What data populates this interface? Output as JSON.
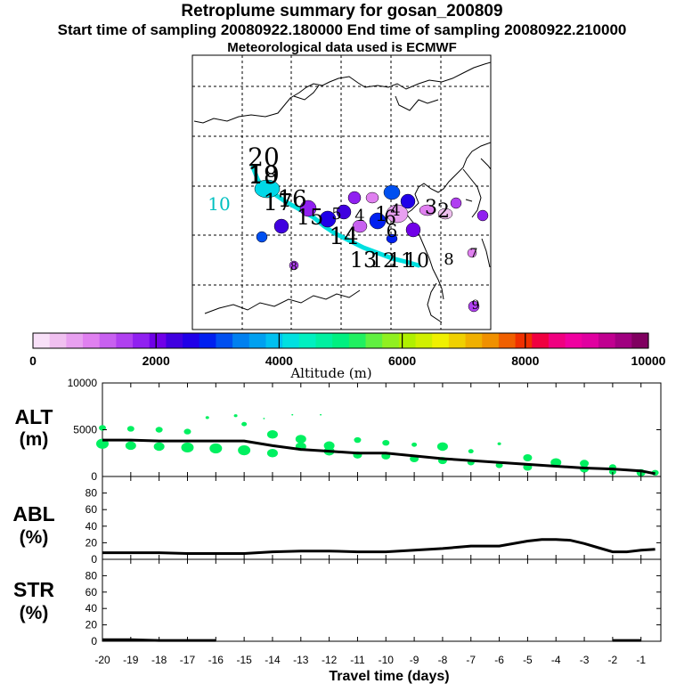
{
  "header": {
    "title": "Retroplume summary for gosan_200809",
    "sampling_line": "Start time of sampling 20080922.180000     End time of sampling 20080922.210000",
    "met_line": "Meteorological data used is ECMWF"
  },
  "map": {
    "trajectory_color": "#00e0e0",
    "day_labels": [
      {
        "label": "20",
        "color": "#000000"
      },
      {
        "label": "19",
        "color": "#000000"
      },
      {
        "label": "18",
        "color": "#000000"
      },
      {
        "label": "17",
        "color": "#000000"
      },
      {
        "label": "16",
        "color": "#000000"
      },
      {
        "label": "15",
        "color": "#000000"
      },
      {
        "label": "14",
        "color": "#000000"
      },
      {
        "label": "13",
        "color": "#000000"
      },
      {
        "label": "12",
        "color": "#000000"
      },
      {
        "label": "11",
        "color": "#000000"
      },
      {
        "label": "10",
        "color": "#000000"
      },
      {
        "label": "10",
        "color": "#00c0c0"
      },
      {
        "label": "8",
        "color": "#000000"
      },
      {
        "label": "9",
        "color": "#000000"
      },
      {
        "label": "7",
        "color": "#000000"
      },
      {
        "label": "6",
        "color": "#000000"
      },
      {
        "label": "5",
        "color": "#000000"
      },
      {
        "label": "4",
        "color": "#000000"
      },
      {
        "label": "3",
        "color": "#000000"
      },
      {
        "label": "2",
        "color": "#000000"
      },
      {
        "label": "1",
        "color": "#000000"
      },
      {
        "label": "4",
        "color": "#000000"
      },
      {
        "label": "6",
        "color": "#000000"
      },
      {
        "label": "8",
        "color": "#000000"
      }
    ]
  },
  "colorbar": {
    "colors": [
      "#f8e0f8",
      "#f0c0f0",
      "#e8a0f0",
      "#e080f0",
      "#c860f0",
      "#b040f0",
      "#9020f0",
      "#7000e8",
      "#4000e0",
      "#2000e8",
      "#0020f0",
      "#0050f0",
      "#0080f0",
      "#00a0f0",
      "#00c0f0",
      "#00e0e0",
      "#00f0c0",
      "#00f0a0",
      "#00f080",
      "#20f060",
      "#60f040",
      "#90f020",
      "#b0f000",
      "#d0f000",
      "#f0f000",
      "#f0d000",
      "#f0b000",
      "#f09000",
      "#f06000",
      "#f03000",
      "#f00040",
      "#f00080",
      "#f000a0",
      "#e000a0",
      "#c00090",
      "#a00080",
      "#800060"
    ],
    "ticks": [
      "0",
      "2000",
      "4000",
      "6000",
      "8000",
      "10000"
    ],
    "label": "Altitude (m)"
  },
  "chart_data": [
    {
      "type": "scatter",
      "panel": "ALT",
      "title": "",
      "ylabel": "ALT (m)",
      "ylabel_line1": "ALT",
      "ylabel_line2": "(m)",
      "xlim": [
        -20,
        -0.3
      ],
      "ylim": [
        0,
        10000
      ],
      "yticks": [
        "10000",
        "5000",
        "0"
      ],
      "series": [
        {
          "name": "mean altitude",
          "x": [
            -20,
            -19,
            -18,
            -17,
            -16,
            -15,
            -14,
            -13,
            -12,
            -11,
            -10,
            -9,
            -8,
            -7,
            -6,
            -5,
            -4,
            -3,
            -2,
            -1,
            -0.5
          ],
          "y": [
            3900,
            3900,
            3800,
            3800,
            3800,
            3800,
            3300,
            2900,
            2700,
            2500,
            2500,
            2200,
            1900,
            1700,
            1500,
            1300,
            1100,
            900,
            800,
            600,
            300
          ]
        },
        {
          "name": "particle clusters",
          "color": "#00f060",
          "x": [
            -20,
            -20,
            -19,
            -19,
            -18,
            -18,
            -17,
            -17,
            -16,
            -15,
            -15,
            -14,
            -14,
            -13,
            -13,
            -12,
            -12,
            -11,
            -11,
            -10,
            -10,
            -9,
            -9,
            -8,
            -8,
            -7,
            -7,
            -6,
            -6,
            -5,
            -5,
            -4,
            -3,
            -3,
            -2,
            -2,
            -1,
            -0.5,
            -16.3,
            -15.3,
            -14.3,
            -13.3,
            -12.3
          ],
          "y": [
            5200,
            3500,
            5100,
            3300,
            5000,
            3200,
            4800,
            3100,
            3000,
            2800,
            5600,
            2500,
            4500,
            3200,
            4000,
            2700,
            3300,
            2300,
            3900,
            2200,
            3600,
            1900,
            3400,
            1700,
            3200,
            1500,
            2700,
            1200,
            3500,
            1000,
            2000,
            1500,
            800,
            1400,
            500,
            1000,
            400,
            400,
            6300,
            6500,
            6200,
            6600,
            6600
          ],
          "r": [
            4,
            7,
            4,
            6,
            4,
            6,
            4,
            7,
            7,
            7,
            3,
            6,
            6,
            6,
            6,
            6,
            6,
            5,
            4,
            5,
            4,
            5,
            3,
            5,
            6,
            4,
            3,
            4,
            2,
            5,
            5,
            6,
            5,
            5,
            4,
            4,
            5,
            4,
            2,
            2,
            1,
            1,
            1
          ]
        }
      ]
    },
    {
      "type": "line",
      "panel": "ABL",
      "title": "",
      "ylabel": "ABL (%)",
      "ylabel_line1": "ABL",
      "ylabel_line2": "(%)",
      "xlim": [
        -20,
        -0.3
      ],
      "ylim": [
        0,
        100
      ],
      "yticks": [
        "80",
        "60",
        "40",
        "20",
        "0"
      ],
      "series": [
        {
          "name": "ABL fraction",
          "x": [
            -20,
            -19,
            -18,
            -17,
            -16,
            -15,
            -14,
            -13,
            -12,
            -11,
            -10,
            -9,
            -8,
            -7,
            -6,
            -5,
            -4.5,
            -4,
            -3.5,
            -3,
            -2.5,
            -2,
            -1.5,
            -1,
            -0.5
          ],
          "y": [
            8,
            8,
            8,
            7,
            7,
            7,
            9,
            10,
            10,
            9,
            9,
            11,
            13,
            16,
            16,
            22,
            24,
            24,
            23,
            19,
            14,
            9,
            9,
            11,
            12
          ]
        }
      ]
    },
    {
      "type": "line",
      "panel": "STR",
      "title": "",
      "xlabel": "Travel time (days)",
      "ylabel": "STR (%)",
      "ylabel_line1": "STR",
      "ylabel_line2": "(%)",
      "xlim": [
        -20,
        -0.3
      ],
      "ylim": [
        0,
        100
      ],
      "yticks": [
        "80",
        "60",
        "40",
        "20",
        "0"
      ],
      "xticks": [
        "-20",
        "-19",
        "-18",
        "-17",
        "-16",
        "-15",
        "-14",
        "-13",
        "-12",
        "-11",
        "-10",
        "-9",
        "-8",
        "-7",
        "-6",
        "-5",
        "-4",
        "-3",
        "-2",
        "-1"
      ],
      "series": [
        {
          "name": "STR fraction",
          "x": [
            -20,
            -19.5,
            -19,
            -18,
            -17,
            -16
          ],
          "y": [
            2,
            2,
            2,
            1,
            1,
            1
          ],
          "x2": [
            -2,
            -1.5,
            -1
          ],
          "y2": [
            1,
            1,
            1
          ]
        }
      ]
    }
  ]
}
